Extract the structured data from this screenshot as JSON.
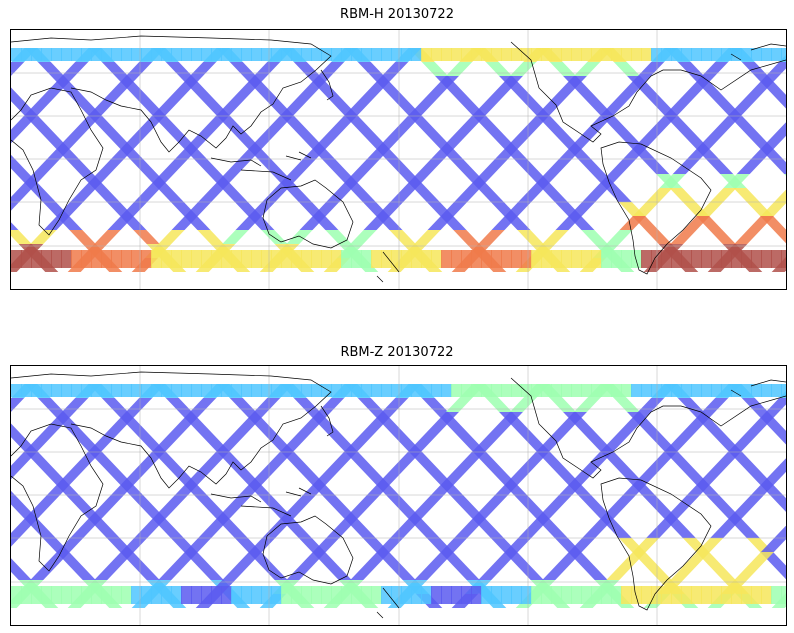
{
  "maps": [
    {
      "title": "RBM-H 20130722",
      "colormap": "jet",
      "colors": {
        "low": "#5a5af0",
        "mid_low": "#4fc6ff",
        "mid": "#9dffb0",
        "mid_high": "#f6e65a",
        "high": "#f07a4a",
        "max": "#b0504a"
      }
    },
    {
      "title": "RBM-Z 20130722",
      "colormap": "jet",
      "colors": {
        "low": "#5a5af0",
        "mid_low": "#4fc6ff",
        "mid": "#9dffb0",
        "mid_high": "#f6e65a",
        "high": "#f07a4a",
        "max": "#b0504a"
      }
    }
  ],
  "projection": "equirectangular",
  "gridlines": true,
  "coastlines": true
}
